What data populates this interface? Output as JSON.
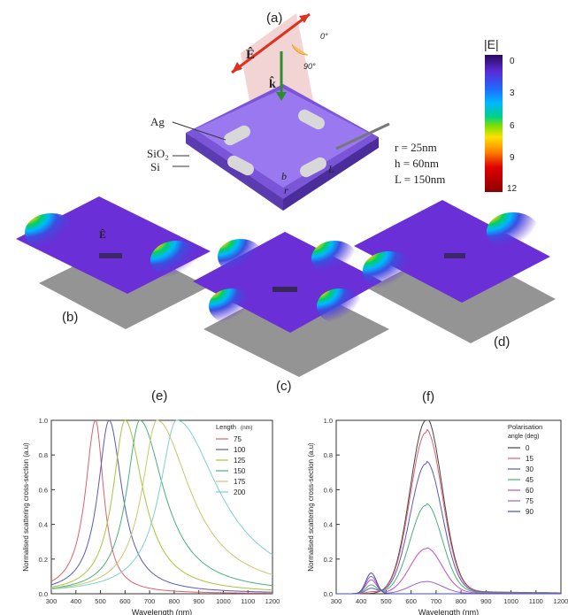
{
  "figure": {
    "panel_labels": {
      "a": "(a)",
      "b": "(b)",
      "c": "(c)",
      "d": "(d)",
      "e": "(e)",
      "f": "(f)"
    },
    "schematic": {
      "e_field_label": "Ê",
      "k_label": "k̂",
      "angle_0": "0°",
      "angle_90": "90°",
      "materials": [
        "Ag",
        "SiO₂",
        "Si"
      ],
      "dimension_letters": [
        "b",
        "r",
        "L"
      ],
      "params": [
        "r = 25nm",
        "h = 60nm",
        "L = 150nm"
      ]
    },
    "colorbar": {
      "title": "|E|",
      "ticks": [
        "0",
        "3",
        "6",
        "9",
        "12"
      ],
      "colors": [
        "#2a0a5a",
        "#5a2bd6",
        "#1f6bff",
        "#00b7ff",
        "#00d08a",
        "#7fe000",
        "#ffe000",
        "#ff8a00",
        "#e00000",
        "#8a0000"
      ]
    },
    "field_maps": {
      "e_label": "Ê"
    }
  },
  "chart_data": [
    {
      "type": "line",
      "panel": "(e)",
      "xlabel": "Wavelength (nm)",
      "ylabel": "Normalised scattering cross-section (a.u)",
      "xlim": [
        300,
        1200
      ],
      "ylim": [
        0,
        1.0
      ],
      "xticks": [
        "300",
        "400",
        "500",
        "600",
        "700",
        "800",
        "900",
        "1000",
        "1100",
        "1200"
      ],
      "yticks": [
        "0.0",
        "0.2",
        "0.4",
        "0.6",
        "0.8",
        "1.0"
      ],
      "legend_title": "Length",
      "legend_unit": "(nm)",
      "legend_position": "top-right",
      "series": [
        {
          "name": "75",
          "color": "#d9606f",
          "peak": 480,
          "wl": 50,
          "wr": 40
        },
        {
          "name": "100",
          "color": "#5a5ab8",
          "peak": 535,
          "wl": 55,
          "wr": 65
        },
        {
          "name": "125",
          "color": "#a8c43c",
          "peak": 600,
          "wl": 60,
          "wr": 90
        },
        {
          "name": "150",
          "color": "#4caf7a",
          "peak": 660,
          "wl": 65,
          "wr": 120
        },
        {
          "name": "175",
          "color": "#c8c870",
          "peak": 730,
          "wl": 75,
          "wr": 165
        },
        {
          "name": "200",
          "color": "#7fd0d0",
          "peak": 810,
          "wl": 85,
          "wr": 210
        }
      ]
    },
    {
      "type": "line",
      "panel": "(f)",
      "xlabel": "Wavelength (nm)",
      "ylabel": "Normalised scattering cross-section (a.u)",
      "xlim": [
        300,
        1200
      ],
      "ylim": [
        0,
        1.0
      ],
      "xticks": [
        "300",
        "400",
        "500",
        "600",
        "700",
        "800",
        "900",
        "1000",
        "1100",
        "1200"
      ],
      "yticks": [
        "0.0",
        "0.2",
        "0.4",
        "0.6",
        "0.8",
        "1.0"
      ],
      "legend_title": "Polarisation",
      "legend_subtitle": "angle (deg)",
      "legend_position": "top-right",
      "series": [
        {
          "name": "0",
          "color": "#444444",
          "amp": 1.0,
          "small": 0.0
        },
        {
          "name": "15",
          "color": "#d9606f",
          "amp": 0.93,
          "small": 0.01
        },
        {
          "name": "30",
          "color": "#5a5ab8",
          "amp": 0.75,
          "small": 0.03
        },
        {
          "name": "45",
          "color": "#4caf7a",
          "amp": 0.51,
          "small": 0.05
        },
        {
          "name": "60",
          "color": "#c050c0",
          "amp": 0.26,
          "small": 0.08
        },
        {
          "name": "75",
          "color": "#9a62c8",
          "amp": 0.07,
          "small": 0.1
        },
        {
          "name": "90",
          "color": "#3f4fb0",
          "amp": 0.0,
          "small": 0.12
        }
      ]
    }
  ]
}
